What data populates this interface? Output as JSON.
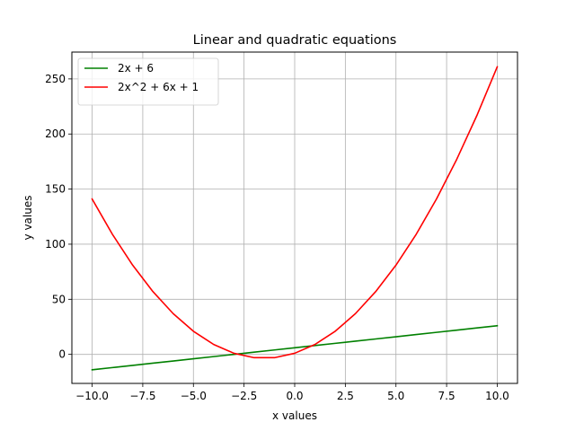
{
  "chart_data": {
    "type": "line",
    "title": "Linear and quadratic equations",
    "xlabel": "x values",
    "ylabel": "y values",
    "xlim": [
      -11.0,
      11.0
    ],
    "ylim": [
      -26.35,
      274.35
    ],
    "xticks": [
      -10.0,
      -7.5,
      -5.0,
      -2.5,
      0.0,
      2.5,
      5.0,
      7.5,
      10.0
    ],
    "xtick_labels": [
      "−10.0",
      "−7.5",
      "−5.0",
      "−2.5",
      "0.0",
      "2.5",
      "5.0",
      "7.5",
      "10.0"
    ],
    "yticks": [
      0,
      50,
      100,
      150,
      200,
      250
    ],
    "ytick_labels": [
      "0",
      "50",
      "100",
      "150",
      "200",
      "250"
    ],
    "grid": true,
    "legend_position": "upper-left",
    "x": [
      -10,
      -9,
      -8,
      -7,
      -6,
      -5,
      -4,
      -3,
      -2,
      -1,
      0,
      1,
      2,
      3,
      4,
      5,
      6,
      7,
      8,
      9,
      10
    ],
    "series": [
      {
        "name": "2x + 6",
        "color": "#008000",
        "values": [
          -14,
          -12,
          -10,
          -8,
          -6,
          -4,
          -2,
          0,
          2,
          4,
          6,
          8,
          10,
          12,
          14,
          16,
          18,
          20,
          22,
          24,
          26
        ]
      },
      {
        "name": "2x^2 + 6x + 1",
        "color": "#ff0000",
        "values": [
          141,
          109,
          81,
          57,
          37,
          21,
          9,
          1,
          -3,
          -3,
          1,
          9,
          21,
          37,
          57,
          81,
          109,
          141,
          177,
          217,
          261
        ]
      }
    ]
  }
}
